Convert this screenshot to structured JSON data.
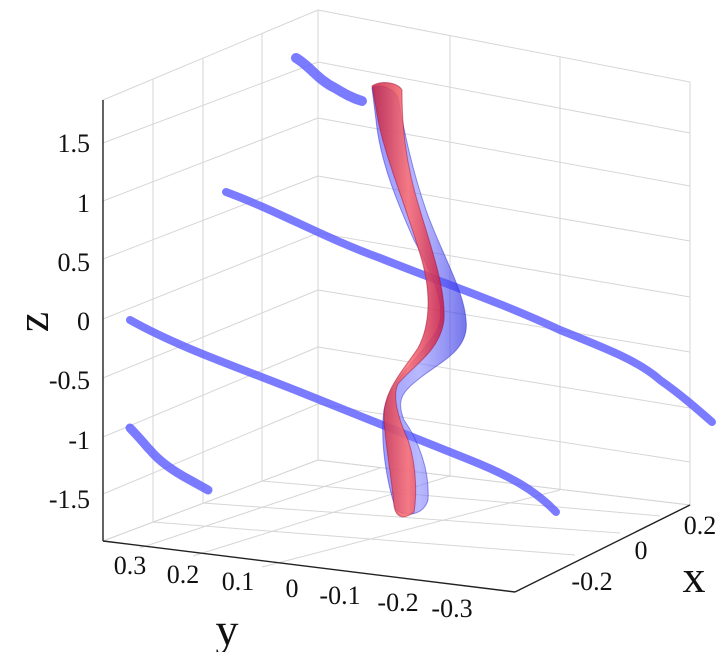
{
  "chart_data": {
    "type": "3d-surface",
    "title": "",
    "axes": {
      "x": {
        "label": "x",
        "ticks": [
          "-0.2",
          "0",
          "0.2"
        ],
        "range": [
          -0.3,
          0.3
        ]
      },
      "y": {
        "label": "y",
        "ticks": [
          "0.3",
          "0.2",
          "0.1",
          "0",
          "-0.1",
          "-0.2",
          "-0.3"
        ],
        "range": [
          -0.35,
          0.35
        ]
      },
      "z": {
        "label": "z",
        "ticks": [
          "1.5",
          "1",
          "0.5",
          "0",
          "-0.5",
          "-1",
          "-1.5"
        ],
        "range": [
          -1.7,
          1.8
        ]
      }
    },
    "grid": true,
    "series": [
      {
        "color": "#ff3a3a",
        "shape": "vertical tube",
        "z_range": [
          -1.65,
          1.75
        ]
      },
      {
        "color": "#5a5aff",
        "shape": "vertical tube envelope",
        "z_range": [
          -1.65,
          1.75
        ]
      },
      {
        "color": "#5a5aff",
        "shape": "filament",
        "z_level": 2.0
      },
      {
        "color": "#5a5aff",
        "shape": "filament",
        "z_level": 1.0
      },
      {
        "color": "#5a5aff",
        "shape": "filament",
        "z_level": 0.0
      },
      {
        "color": "#5a5aff",
        "shape": "filament",
        "z_level": -1.0
      }
    ]
  }
}
